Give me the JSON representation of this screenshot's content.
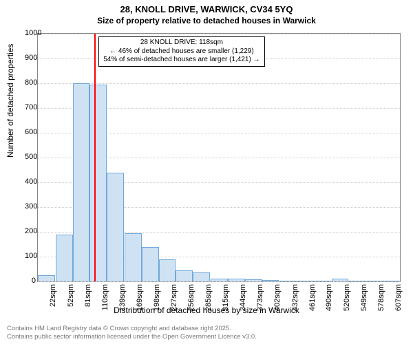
{
  "title": "28, KNOLL DRIVE, WARWICK, CV34 5YQ",
  "subtitle": "Size of property relative to detached houses in Warwick",
  "ylabel": "Number of detached properties",
  "xlabel": "Distribution of detached houses by size in Warwick",
  "footer_line1": "Contains HM Land Registry data © Crown copyright and database right 2025.",
  "footer_line2": "Contains public sector information licensed under the Open Government Licence v3.0.",
  "chart": {
    "type": "histogram",
    "ylim": [
      0,
      1000
    ],
    "ytick_step": 100,
    "yticks": [
      0,
      100,
      200,
      300,
      400,
      500,
      600,
      700,
      800,
      900,
      1000
    ],
    "xtick_labels": [
      "22sqm",
      "52sqm",
      "81sqm",
      "110sqm",
      "139sqm",
      "169sqm",
      "198sqm",
      "227sqm",
      "256sqm",
      "285sqm",
      "315sqm",
      "344sqm",
      "373sqm",
      "402sqm",
      "432sqm",
      "461sqm",
      "490sqm",
      "520sqm",
      "549sqm",
      "578sqm",
      "607sqm"
    ],
    "xtick_positions": [
      22,
      52,
      81,
      110,
      139,
      169,
      198,
      227,
      256,
      285,
      315,
      344,
      373,
      402,
      432,
      461,
      490,
      520,
      549,
      578,
      607
    ],
    "x_range": [
      22,
      636
    ],
    "bin_width": 29,
    "bar_fill": "#cfe2f3",
    "bar_stroke": "#6fa8dc",
    "background_color": "#ffffff",
    "grid_color": "#cccccc",
    "plot_border_color": "#888888",
    "values": [
      25,
      190,
      800,
      795,
      440,
      195,
      140,
      90,
      45,
      35,
      10,
      12,
      8,
      5,
      4,
      3,
      2,
      10,
      2,
      1,
      0
    ],
    "marker": {
      "x": 118,
      "color": "#ff0000",
      "width": 2
    },
    "annotation": {
      "line1": "28 KNOLL DRIVE: 118sqm",
      "line2": "← 46% of detached houses are smaller (1,229)",
      "line3": "54% of semi-detached houses are larger (1,421) →"
    }
  }
}
